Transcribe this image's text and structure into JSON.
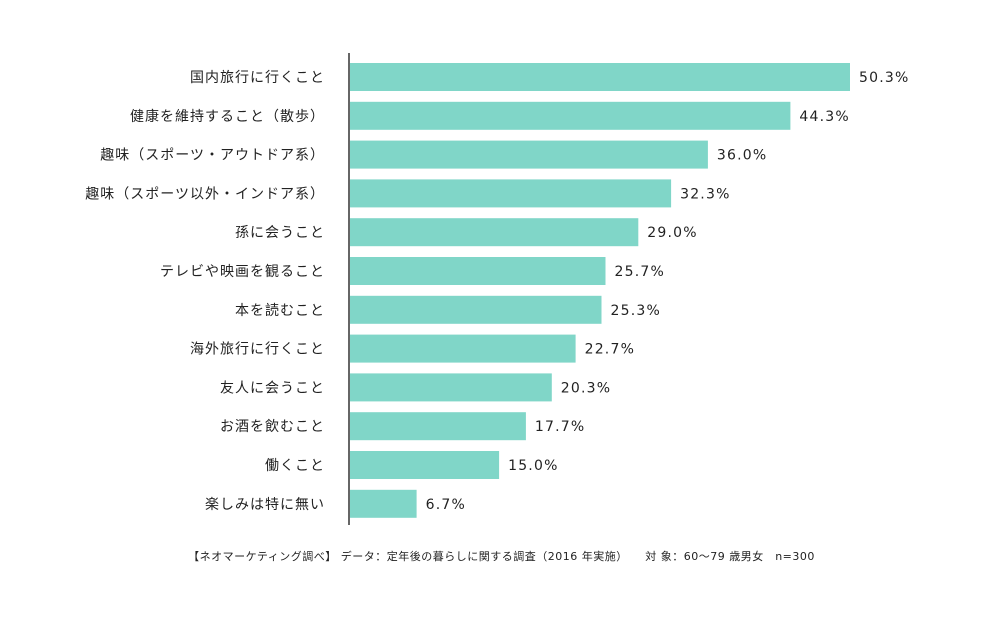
{
  "chart_data": {
    "type": "bar",
    "orientation": "horizontal",
    "categories": [
      "国内旅行に行くこと",
      "健康を維持すること（散歩）",
      "趣味（スポーツ・アウトドア系）",
      "趣味（スポーツ以外・インドア系）",
      "孫に会うこと",
      "テレビや映画を観ること",
      "本を読むこと",
      "海外旅行に行くこと",
      "友人に会うこと",
      "お酒を飲むこと",
      "働くこと",
      "楽しみは特に無い"
    ],
    "values": [
      50.3,
      44.3,
      36.0,
      32.3,
      29.0,
      25.7,
      25.3,
      22.7,
      20.3,
      17.7,
      15.0,
      6.7
    ],
    "value_labels": [
      "50.3%",
      "44.3%",
      "36.0%",
      "32.3%",
      "29.0%",
      "25.7%",
      "25.3%",
      "22.7%",
      "20.3%",
      "17.7%",
      "15.0%",
      "6.7%"
    ],
    "xlim": [
      0,
      50.3
    ],
    "bar_color": "#80d6c8",
    "axis_color": "#333333",
    "grid": false,
    "legend": "none",
    "label_position": "outside-end"
  },
  "source_note": "【ネオマーケティング調べ】 データ：定年後の暮らしに関する調査（2016 年実施）　　対 象：60〜79 歳男女　n=300"
}
